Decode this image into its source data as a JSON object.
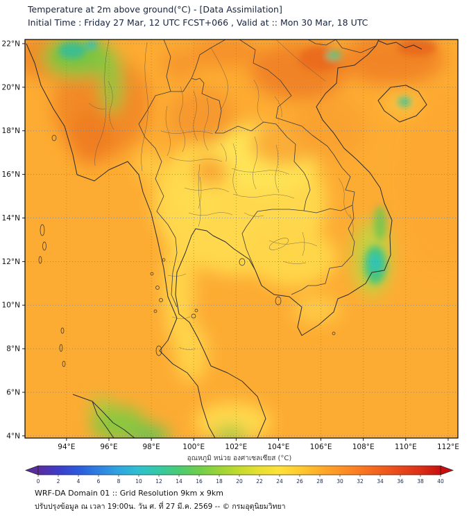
{
  "header": {
    "title": "Temperature at 2m above ground(°C) - [Data Assimilation]",
    "subtitle": "Initial Time : Friday 27 Mar, 12 UTC FCST+066 , Valid at :: Mon 30 Mar, 18 UTC"
  },
  "map": {
    "lon_range": [
      92.04,
      112.46
    ],
    "lat_range": [
      3.9,
      22.19
    ],
    "lat_ticks": [
      {
        "label": "22°N",
        "value": 22
      },
      {
        "label": "20°N",
        "value": 20
      },
      {
        "label": "18°N",
        "value": 18
      },
      {
        "label": "16°N",
        "value": 16
      },
      {
        "label": "14°N",
        "value": 14
      },
      {
        "label": "12°N",
        "value": 12
      },
      {
        "label": "10°N",
        "value": 10
      },
      {
        "label": "8°N",
        "value": 8
      },
      {
        "label": "6°N",
        "value": 6
      },
      {
        "label": "4°N",
        "value": 4
      }
    ],
    "lon_ticks": [
      {
        "label": "94°E",
        "value": 94
      },
      {
        "label": "96°E",
        "value": 96
      },
      {
        "label": "98°E",
        "value": 98
      },
      {
        "label": "100°E",
        "value": 100
      },
      {
        "label": "102°E",
        "value": 102
      },
      {
        "label": "104°E",
        "value": 104
      },
      {
        "label": "106°E",
        "value": 106
      },
      {
        "label": "108°E",
        "value": 108
      },
      {
        "label": "110°E",
        "value": 110
      },
      {
        "label": "112°E",
        "value": 112
      }
    ]
  },
  "colorbar": {
    "label": "อุณหภูมิ หน่วย องศาเซลเซียส (°C)",
    "min": 0,
    "max": 40,
    "ticks": [
      "0",
      "2",
      "4",
      "6",
      "8",
      "10",
      "12",
      "14",
      "16",
      "18",
      "20",
      "22",
      "24",
      "26",
      "28",
      "30",
      "32",
      "34",
      "36",
      "38",
      "40"
    ],
    "stops": [
      {
        "v": 0,
        "c": "#5B2C9E"
      },
      {
        "v": 2,
        "c": "#3C3CC8"
      },
      {
        "v": 4,
        "c": "#2C5ADD"
      },
      {
        "v": 6,
        "c": "#2E80E0"
      },
      {
        "v": 8,
        "c": "#2FA5E0"
      },
      {
        "v": 10,
        "c": "#2FC0CF"
      },
      {
        "v": 12,
        "c": "#35C9A4"
      },
      {
        "v": 14,
        "c": "#4ACB73"
      },
      {
        "v": 16,
        "c": "#6FCE4B"
      },
      {
        "v": 18,
        "c": "#9AD437"
      },
      {
        "v": 20,
        "c": "#C4DB2E"
      },
      {
        "v": 22,
        "c": "#E8E031"
      },
      {
        "v": 24,
        "c": "#FFE139"
      },
      {
        "v": 26,
        "c": "#FFCA2F"
      },
      {
        "v": 28,
        "c": "#FFAD2A"
      },
      {
        "v": 30,
        "c": "#FF9325"
      },
      {
        "v": 32,
        "c": "#FA7921"
      },
      {
        "v": 34,
        "c": "#F25F1D"
      },
      {
        "v": 36,
        "c": "#E8471A"
      },
      {
        "v": 38,
        "c": "#DB2F17"
      },
      {
        "v": 40,
        "c": "#C80F0F"
      }
    ]
  },
  "palette": {
    "sea_base": "#FDAC33",
    "title_color": "#16233d"
  },
  "footer": {
    "line1": "WRF-DA Domain 01 :: Grid Resolution 9km x 9km",
    "line2": "ปรับปรุงข้อมูล ณ เวลา 19:00น. วัน ศ. ที่ 27 มี.ค. 2569 -- © กรมอุตุนิยมวิทยา"
  }
}
